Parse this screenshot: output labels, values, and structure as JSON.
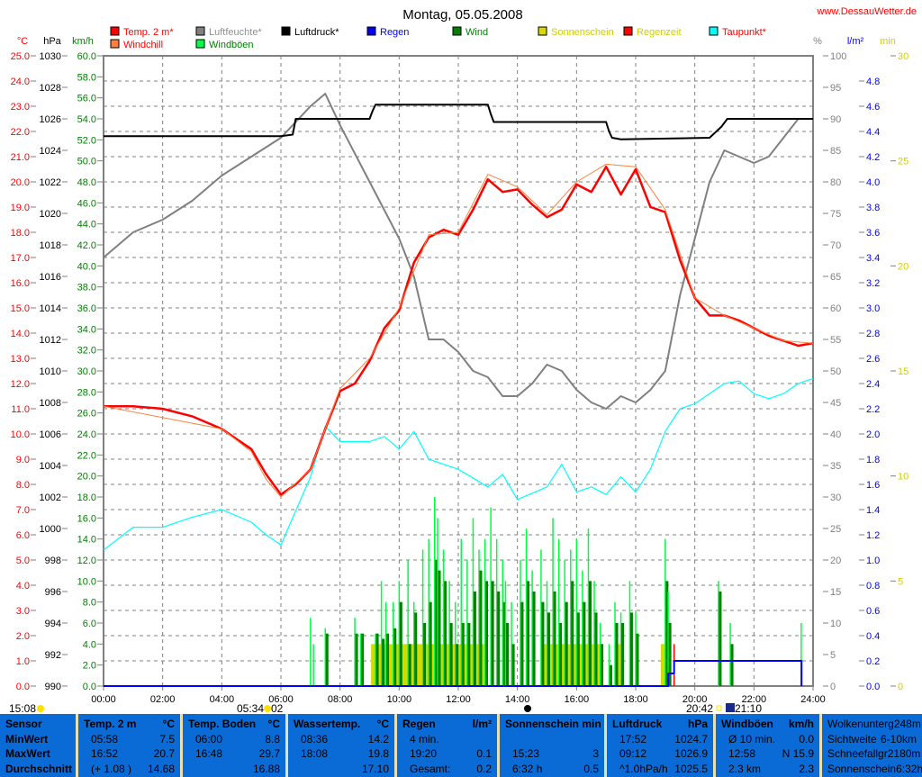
{
  "header": {
    "title": "Montag, 05.05.2008",
    "site": "www.DessauWetter.de"
  },
  "colors": {
    "temp": "#ff0000",
    "windchill": "#ff8040",
    "humidity": "#808080",
    "pressure": "#000000",
    "rain": "#0000ff",
    "wind": "#008000",
    "gust": "#00ff40",
    "sun": "#d8d800",
    "raintime": "#ff0000",
    "dew": "#00ffff",
    "table_bg": "#0a6ad6"
  },
  "legend": [
    {
      "label": "Temp. 2 m*",
      "color": "#ff0000",
      "text_color": "#ff0000"
    },
    {
      "label": "Windchill",
      "color": "#ff8040",
      "text_color": "#ff0000"
    },
    {
      "label": "Luftfeuchte*",
      "color": "#808080",
      "text_color": "#909090"
    },
    {
      "label": "Windböen",
      "color": "#00ff40",
      "text_color": "#008000"
    },
    {
      "label": "Luftdruck*",
      "color": "#000000",
      "text_color": "#000000"
    },
    {
      "label": "Regen",
      "color": "#0000ff",
      "text_color": "#0000ff"
    },
    {
      "label": "Wind",
      "color": "#008000",
      "text_color": "#008000"
    },
    {
      "label": "Sonnenschein",
      "color": "#d8d800",
      "text_color": "#d0d000"
    },
    {
      "label": "Regenzeit",
      "color": "#ff0000",
      "text_color": "#d0d000"
    },
    {
      "label": "Taupunkt*",
      "color": "#00ffff",
      "text_color": "#ff0000"
    }
  ],
  "astro": {
    "moon_rise": "15:08",
    "sunrise": "05:34",
    "moon_phase_suffix": "02",
    "sunset": "20:42",
    "moonset": "21:10"
  },
  "chart_data": {
    "type": "line",
    "title": "Montag, 05.05.2008",
    "x_ticks": [
      "00:00",
      "02:00",
      "04:00",
      "06:00",
      "08:00",
      "10:00",
      "12:00",
      "14:00",
      "16:00",
      "18:00",
      "20:00",
      "22:00",
      "24:00"
    ],
    "xlim": [
      0,
      24
    ],
    "axes": {
      "temp": {
        "unit": "°C",
        "range": [
          0,
          25
        ],
        "step": 1
      },
      "pressure": {
        "unit": "hPa",
        "range": [
          990,
          1030
        ],
        "step": 2
      },
      "wind": {
        "unit": "km/h",
        "range": [
          0,
          60
        ],
        "step": 2
      },
      "humidity": {
        "unit": "%",
        "range": [
          0,
          100
        ],
        "step": 5
      },
      "rain": {
        "unit": "l/m²",
        "range": [
          0,
          5
        ],
        "step": 0.2
      },
      "sun": {
        "unit": "min",
        "range": [
          0,
          30
        ],
        "step": 5
      }
    },
    "series": [
      {
        "name": "Temp. 2 m*",
        "axis": "temp",
        "x": [
          0,
          1,
          2,
          3,
          4,
          4.5,
          5,
          5.5,
          6,
          6.5,
          7,
          7.5,
          8,
          8.5,
          9,
          9.5,
          10,
          10.5,
          11,
          11.5,
          12,
          12.5,
          13,
          13.5,
          14,
          14.5,
          15,
          15.5,
          16,
          16.5,
          17,
          17.5,
          18,
          18.5,
          19,
          19.5,
          20,
          20.5,
          21,
          21.5,
          22,
          22.5,
          23,
          23.5,
          24
        ],
        "y": [
          11.1,
          11.1,
          11.0,
          10.7,
          10.2,
          9.8,
          9.4,
          8.4,
          7.6,
          8.0,
          8.6,
          10.2,
          11.7,
          12.0,
          12.9,
          14.2,
          14.9,
          16.8,
          17.8,
          18.1,
          17.9,
          18.9,
          20.1,
          19.6,
          19.7,
          19.1,
          18.6,
          18.9,
          19.9,
          19.6,
          20.6,
          19.5,
          20.5,
          19.0,
          18.8,
          16.9,
          15.4,
          14.7,
          14.7,
          14.5,
          14.2,
          13.9,
          13.7,
          13.5,
          13.6
        ]
      },
      {
        "name": "Windchill",
        "axis": "temp",
        "x": [
          0,
          4,
          5,
          5.5,
          6,
          7,
          8,
          9,
          10,
          11,
          12,
          13,
          14,
          15,
          16,
          17,
          18,
          19,
          20,
          21,
          22,
          23,
          24
        ],
        "y": [
          11.1,
          10.2,
          9.3,
          8.2,
          7.5,
          8.6,
          11.8,
          13.0,
          15.0,
          17.9,
          18.0,
          20.3,
          19.8,
          18.7,
          20.0,
          20.7,
          20.6,
          18.9,
          15.4,
          14.7,
          14.2,
          13.7,
          13.6
        ]
      },
      {
        "name": "Luftfeuchte*",
        "axis": "humidity",
        "x": [
          0,
          1,
          2,
          3,
          4,
          5,
          6,
          7,
          7.5,
          8,
          9,
          10,
          10.5,
          11,
          11.5,
          12,
          12.5,
          13,
          13.5,
          14,
          14.5,
          15,
          15.5,
          16,
          16.5,
          17,
          17.5,
          18,
          18.5,
          19,
          19.5,
          20,
          20.5,
          21,
          21.5,
          22,
          22.5,
          23,
          23.5,
          24
        ],
        "y": [
          68,
          72,
          74,
          77,
          81,
          84,
          87,
          92,
          94,
          89,
          80,
          71,
          65,
          55,
          55,
          53,
          50,
          49,
          46,
          46,
          48,
          51,
          50,
          47,
          45,
          44,
          46,
          45,
          47,
          50,
          62,
          71,
          80,
          85,
          84,
          83,
          84,
          87,
          90,
          90
        ]
      },
      {
        "name": "Luftdruck*",
        "axis": "pressure",
        "x": [
          0,
          6,
          6.4,
          6.5,
          9,
          9.1,
          9.2,
          13,
          13.1,
          13.2,
          17,
          17.1,
          17.2,
          17.5,
          20.5,
          20.9,
          21.1,
          24
        ],
        "y": [
          1024.9,
          1024.9,
          1025.0,
          1026.0,
          1026.0,
          1026.5,
          1026.9,
          1026.9,
          1026.3,
          1025.8,
          1025.8,
          1025.2,
          1024.8,
          1024.7,
          1024.8,
          1025.5,
          1026.0,
          1026.0
        ]
      },
      {
        "name": "Taupunkt*",
        "axis": "temp",
        "x": [
          0,
          1,
          2,
          3,
          4,
          5,
          5.5,
          6,
          7,
          7.5,
          8,
          9,
          9.5,
          10,
          10.5,
          11,
          12,
          13,
          13.5,
          14,
          15,
          15.5,
          16,
          16.5,
          17,
          17.5,
          18,
          18.5,
          19,
          19.5,
          20,
          21,
          21.5,
          22,
          22.5,
          23,
          23.5,
          24
        ],
        "y": [
          5.4,
          6.3,
          6.3,
          6.7,
          7.0,
          6.5,
          6.0,
          5.6,
          8.3,
          10.3,
          9.7,
          9.7,
          9.9,
          9.4,
          10.1,
          9.0,
          8.6,
          7.9,
          8.4,
          7.4,
          7.9,
          8.8,
          7.7,
          7.9,
          7.6,
          8.3,
          7.7,
          8.6,
          10.1,
          11.0,
          11.2,
          12.0,
          12.1,
          11.6,
          11.4,
          11.6,
          12.0,
          12.2
        ]
      },
      {
        "name": "Regen",
        "axis": "rain",
        "type": "step",
        "x": [
          0,
          19.1,
          19.3,
          23.6,
          23.61
        ],
        "y": [
          0,
          0.1,
          0.2,
          0.2,
          0.2
        ]
      }
    ],
    "wind": {
      "axis": "wind",
      "x": [
        7.0,
        7.1,
        7.5,
        8.5,
        8.7,
        9.2,
        9.4,
        9.55,
        9.8,
        10.0,
        10.3,
        10.5,
        10.8,
        11.0,
        11.2,
        11.3,
        11.5,
        11.7,
        11.9,
        12.1,
        12.3,
        12.5,
        12.7,
        12.9,
        13.1,
        13.3,
        13.5,
        13.6,
        13.8,
        14.1,
        14.3,
        14.5,
        14.8,
        15.0,
        15.2,
        15.4,
        15.6,
        15.8,
        16.0,
        16.2,
        16.4,
        16.6,
        16.8,
        17.1,
        17.3,
        17.5,
        17.8,
        18.0,
        19.0,
        19.1,
        20.8,
        21.2,
        23.6
      ],
      "gust": [
        6.5,
        4,
        5.5,
        6.5,
        5,
        5,
        10,
        8,
        8,
        10,
        12,
        8,
        13,
        14,
        18,
        16,
        13,
        10,
        8,
        14,
        12,
        16,
        13,
        14,
        17,
        14,
        12,
        10,
        8,
        12,
        15,
        11,
        13,
        10,
        16,
        14,
        12,
        13,
        14,
        11,
        15,
        10,
        6,
        4,
        8,
        7,
        10,
        7,
        14,
        9,
        10,
        6,
        6
      ],
      "avg": [
        0,
        0,
        5,
        5,
        5,
        5,
        4.5,
        5,
        5.5,
        8,
        4,
        7,
        6,
        8,
        12,
        11,
        10,
        6,
        4,
        6,
        6,
        9,
        11,
        10,
        10,
        9,
        8,
        6,
        4,
        8,
        10,
        9,
        8,
        7,
        9,
        6,
        8,
        10,
        7,
        8,
        10,
        7,
        4,
        2,
        6,
        6,
        7,
        5,
        10,
        6,
        9,
        4,
        0
      ]
    },
    "sunshine": {
      "axis": "sun",
      "intervals": [
        [
          9.05,
          12.95,
          2
        ],
        [
          14.85,
          16.85,
          2
        ],
        [
          17.3,
          17.6,
          2
        ],
        [
          18.85,
          19.0,
          2
        ]
      ]
    },
    "raintime": {
      "axis": "sun",
      "x": [
        19.3
      ],
      "y": [
        2
      ]
    }
  },
  "table": {
    "columns": [
      {
        "title": "Sensor",
        "unit": "",
        "rows": [
          [
            "MinWert",
            ""
          ],
          [
            "MaxWert",
            ""
          ],
          [
            "Durchschnitt",
            ""
          ]
        ]
      },
      {
        "title": "Temp. 2 m",
        "unit": "°C",
        "rows": [
          [
            "05:58",
            "7.5"
          ],
          [
            "16:52",
            "20.7"
          ],
          [
            "(+ 1.08 )",
            "14.68"
          ]
        ]
      },
      {
        "title": "Temp. Boden",
        "unit": "°C",
        "rows": [
          [
            "06:00",
            "8.8"
          ],
          [
            "16:48",
            "29.7"
          ],
          [
            "",
            "16.88"
          ]
        ]
      },
      {
        "title": "Wassertemp.",
        "unit": "°C",
        "rows": [
          [
            "08:36",
            "14.2"
          ],
          [
            "18:08",
            "19.8"
          ],
          [
            "",
            "17.10"
          ]
        ]
      },
      {
        "title": "Regen",
        "unit": "l/m²",
        "rows": [
          [
            "4 min.",
            ""
          ],
          [
            "19:20",
            "0.1"
          ],
          [
            "Gesamt:",
            "0.2"
          ]
        ]
      },
      {
        "title": "Sonnenschein min",
        "unit": "",
        "rows": [
          [
            "",
            ""
          ],
          [
            "15:23",
            "3"
          ],
          [
            "6:32 h",
            "0.5"
          ]
        ]
      },
      {
        "title": "Luftdruck",
        "unit": "hPa",
        "rows": [
          [
            "17:52",
            "1024.7"
          ],
          [
            "09:12",
            "1026.9"
          ],
          [
            "^1.0hPa/h",
            "1025.5"
          ]
        ]
      },
      {
        "title": "Windböen",
        "unit": "km/h",
        "rows": [
          [
            "Ø 10 min.",
            "0.0"
          ],
          [
            "12:58",
            "N 15.9"
          ],
          [
            "2.3 km",
            "2.3"
          ]
        ]
      },
      {
        "title": "",
        "unit": "",
        "rows": [
          [
            "Wolkenunterg",
            "248m"
          ],
          [
            "Sichtweite",
            "6-10km"
          ],
          [
            "Schneefallgr",
            "2180m"
          ],
          [
            "Sonnenschein",
            "6:32h"
          ]
        ]
      }
    ]
  }
}
